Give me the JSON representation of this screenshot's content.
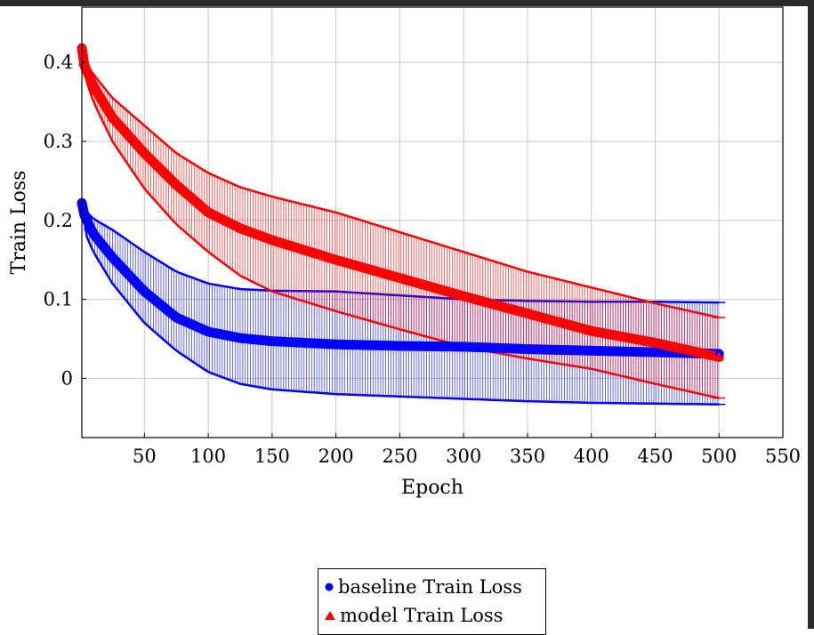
{
  "chart_data": {
    "type": "line",
    "xlabel": "Epoch",
    "ylabel": "Train Loss",
    "xlim": [
      1,
      550
    ],
    "ylim": [
      -0.075,
      0.47
    ],
    "xticks": [
      50,
      100,
      150,
      200,
      250,
      300,
      350,
      400,
      450,
      500,
      550
    ],
    "yticks": [
      0,
      0.1,
      0.2,
      0.3,
      0.4
    ],
    "ytick_labels": [
      "0",
      "0.1",
      "0.2",
      "0.3",
      "0.4"
    ],
    "grid": true,
    "legend_position": "bottom-center, below the axes",
    "series": [
      {
        "name": "baseline Train Loss",
        "marker": "circle",
        "color": "#0000ff",
        "x": [
          1,
          2,
          10,
          25,
          50,
          75,
          100,
          125,
          150,
          200,
          250,
          300,
          350,
          400,
          450,
          500
        ],
        "y": [
          0.222,
          0.21,
          0.183,
          0.153,
          0.11,
          0.077,
          0.059,
          0.051,
          0.047,
          0.043,
          0.041,
          0.04,
          0.037,
          0.035,
          0.033,
          0.031
        ],
        "lower": [
          0.222,
          0.19,
          0.16,
          0.12,
          0.07,
          0.035,
          0.008,
          -0.007,
          -0.014,
          -0.02,
          -0.023,
          -0.026,
          -0.029,
          -0.031,
          -0.032,
          -0.033
        ],
        "upper": [
          0.222,
          0.215,
          0.202,
          0.188,
          0.16,
          0.135,
          0.12,
          0.113,
          0.111,
          0.11,
          0.105,
          0.1,
          0.098,
          0.097,
          0.097,
          0.096
        ]
      },
      {
        "name": "model Train Loss",
        "marker": "triangle",
        "color": "#ff0000",
        "x": [
          1,
          2,
          10,
          25,
          50,
          75,
          100,
          125,
          150,
          200,
          250,
          300,
          350,
          400,
          450,
          500
        ],
        "y": [
          0.418,
          0.4,
          0.37,
          0.33,
          0.285,
          0.245,
          0.21,
          0.19,
          0.175,
          0.15,
          0.127,
          0.104,
          0.082,
          0.06,
          0.045,
          0.027
        ],
        "lower": [
          0.418,
          0.39,
          0.35,
          0.3,
          0.24,
          0.195,
          0.16,
          0.13,
          0.11,
          0.085,
          0.062,
          0.04,
          0.025,
          0.012,
          -0.007,
          -0.025
        ],
        "upper": [
          0.418,
          0.405,
          0.385,
          0.355,
          0.32,
          0.285,
          0.26,
          0.242,
          0.23,
          0.21,
          0.185,
          0.16,
          0.135,
          0.115,
          0.095,
          0.077
        ]
      }
    ]
  }
}
